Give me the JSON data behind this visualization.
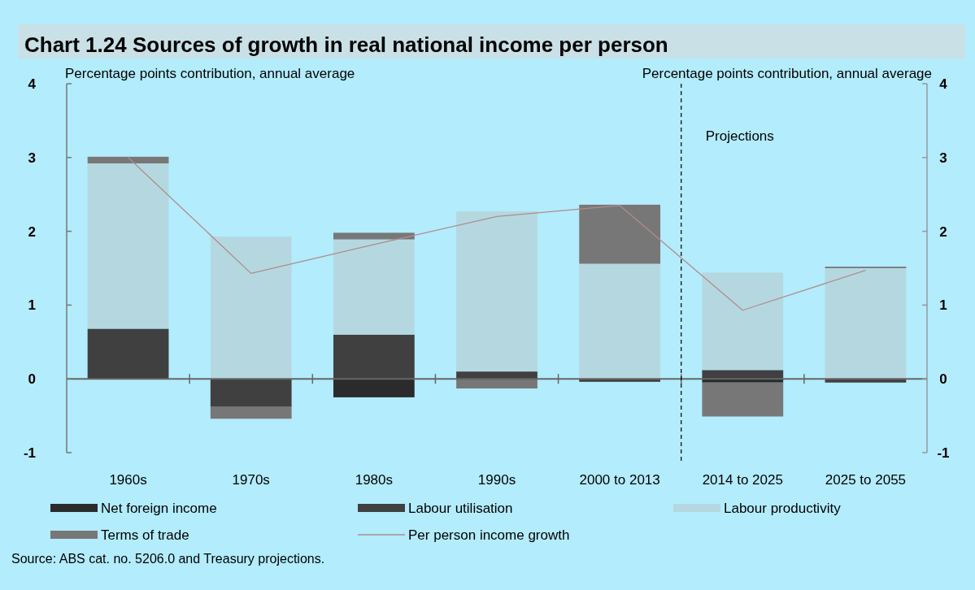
{
  "chart_data": {
    "type": "bar",
    "stacked": true,
    "title": "Chart 1.24   Sources of growth in real national income per person",
    "ylabel": "Percentage points contribution, annual average",
    "y2label": "Percentage points contribution, annual average",
    "categories": [
      "1960s",
      "1970s",
      "1980s",
      "1990s",
      "2000 to 2013",
      "2014 to 2025",
      "2025 to 2055"
    ],
    "series": [
      {
        "name": "Net foreign income",
        "color": "#2b2b2b",
        "values": [
          0,
          0,
          -0.25,
          0,
          0,
          -0.05,
          0
        ]
      },
      {
        "name": "Labour utilisation",
        "color": "#404040",
        "values": [
          0.68,
          -0.38,
          0.6,
          0.1,
          -0.04,
          0.12,
          -0.05
        ]
      },
      {
        "name": "Labour productivity",
        "color": "#b5d8e0",
        "values": [
          2.24,
          1.93,
          1.29,
          2.17,
          1.56,
          1.32,
          1.5
        ]
      },
      {
        "name": "Terms of trade",
        "color": "#777777",
        "values": [
          0.09,
          -0.16,
          0.09,
          -0.13,
          0.8,
          -0.46,
          0.02
        ]
      },
      {
        "name": "Per person income growth",
        "type": "line",
        "color": "#b08c8c",
        "values": [
          3.0,
          1.43,
          1.82,
          2.2,
          2.35,
          0.93,
          1.47
        ]
      }
    ],
    "ylim": [
      -1,
      4
    ],
    "yticks": [
      -1,
      0,
      1,
      2,
      3,
      4
    ],
    "y2lim": [
      -1,
      4
    ],
    "y2ticks": [
      -1,
      0,
      1,
      2,
      3,
      4
    ],
    "legend": "bottom",
    "annotations": [
      "Projections",
      "Source: ABS cat. no. 5206.0 and Treasury projections."
    ]
  }
}
